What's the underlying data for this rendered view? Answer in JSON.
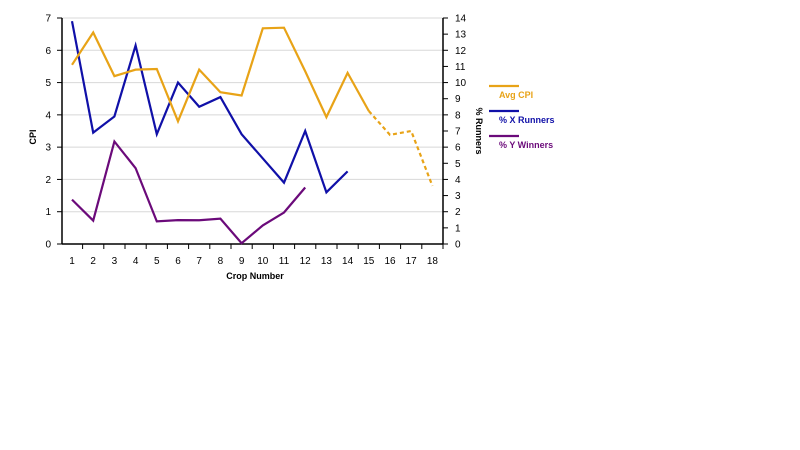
{
  "chart_data": {
    "type": "line",
    "title": "",
    "xlabel": "Crop Number",
    "ylabel_left": "CPI",
    "ylabel_right": "% Runners",
    "x": [
      1,
      2,
      3,
      4,
      5,
      6,
      7,
      8,
      9,
      10,
      11,
      12,
      13,
      14,
      15,
      16,
      17,
      18
    ],
    "ylim_left": [
      0,
      7
    ],
    "yticks_left": [
      0,
      1,
      2,
      3,
      4,
      5,
      6,
      7
    ],
    "ylim_right": [
      0,
      14
    ],
    "yticks_right": [
      0,
      1,
      2,
      3,
      4,
      5,
      6,
      7,
      8,
      9,
      10,
      11,
      12,
      13,
      14
    ],
    "grid": true,
    "legend_position": "right",
    "series": [
      {
        "name": "Avg CPI",
        "axis": "left",
        "color": "#e8a317",
        "x": [
          1,
          2,
          3,
          4,
          5,
          6,
          7,
          8,
          9,
          10,
          11,
          12,
          13,
          14,
          15
        ],
        "values": [
          5.55,
          6.55,
          5.2,
          5.4,
          5.42,
          3.8,
          5.4,
          4.7,
          4.6,
          6.68,
          6.7,
          5.35,
          3.93,
          5.3,
          4.12
        ],
        "projected_x": [
          15,
          16,
          17,
          18
        ],
        "projected_values": [
          4.12,
          3.38,
          3.5,
          1.8
        ]
      },
      {
        "name": "% X Runners",
        "axis": "right",
        "color": "#1010a8",
        "x": [
          1,
          2,
          3,
          4,
          5,
          6,
          7,
          8,
          9,
          10,
          11,
          12,
          13,
          14
        ],
        "values": [
          13.8,
          6.9,
          7.9,
          12.3,
          6.8,
          10,
          8.5,
          9.1,
          6.8,
          5.3,
          3.8,
          7.0,
          3.2,
          4.5
        ]
      },
      {
        "name": "% Y Winners",
        "axis": "right",
        "color": "#6b0a7a",
        "x": [
          1,
          2,
          3,
          4,
          5,
          6,
          7,
          8,
          9,
          10,
          11,
          12
        ],
        "values": [
          2.75,
          1.45,
          6.35,
          4.7,
          1.4,
          1.48,
          1.47,
          1.57,
          0.05,
          1.15,
          1.95,
          3.5
        ]
      }
    ]
  }
}
